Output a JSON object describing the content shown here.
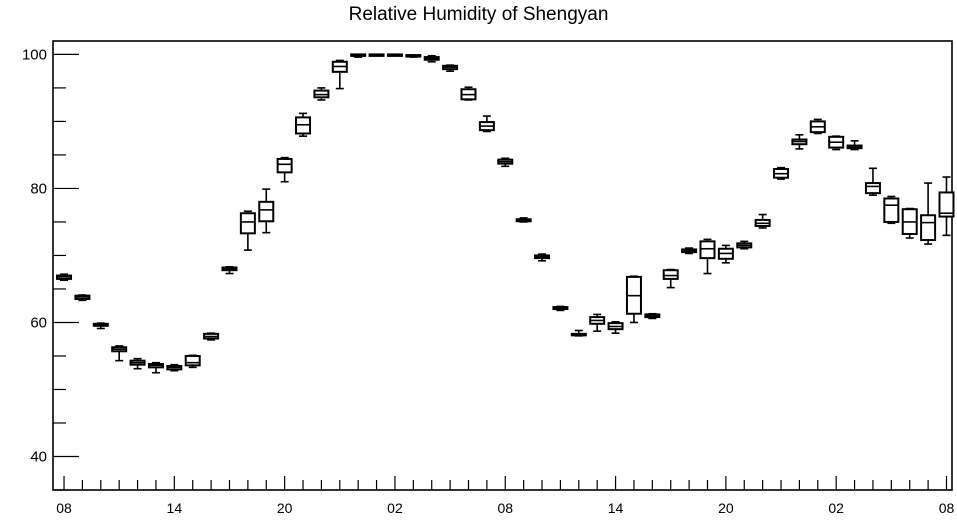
{
  "chart_data": {
    "type": "box",
    "title": "Relative Humidity of Shengyan",
    "xlabel": "",
    "ylabel": "",
    "ylim": [
      35,
      102
    ],
    "yticks": [
      40,
      60,
      80,
      100
    ],
    "x_tick_labels": [
      "08",
      "14",
      "20",
      "02",
      "08",
      "14",
      "20",
      "02",
      "08"
    ],
    "x_tick_label_positions": [
      0,
      6,
      12,
      18,
      24,
      30,
      36,
      42,
      48
    ],
    "x_range": [
      -0.6,
      48.3
    ],
    "grid": false,
    "box_color": "#000000",
    "boxes": [
      {
        "x": 0,
        "min": 66.3,
        "q1": 66.5,
        "median": 66.8,
        "q3": 67.0,
        "max": 67.2
      },
      {
        "x": 1,
        "min": 63.3,
        "q1": 63.5,
        "median": 63.8,
        "q3": 64.0,
        "max": 64.1
      },
      {
        "x": 2,
        "min": 59.1,
        "q1": 59.5,
        "median": 59.7,
        "q3": 59.8,
        "max": 59.9
      },
      {
        "x": 3,
        "min": 54.3,
        "q1": 55.7,
        "median": 56.0,
        "q3": 56.3,
        "max": 56.5
      },
      {
        "x": 4,
        "min": 53.1,
        "q1": 53.7,
        "median": 54.0,
        "q3": 54.3,
        "max": 54.6
      },
      {
        "x": 5,
        "min": 52.5,
        "q1": 53.3,
        "median": 53.6,
        "q3": 53.8,
        "max": 54.0
      },
      {
        "x": 6,
        "min": 52.8,
        "q1": 53.0,
        "median": 53.3,
        "q3": 53.5,
        "max": 53.7
      },
      {
        "x": 7,
        "min": 53.3,
        "q1": 53.6,
        "median": 54.0,
        "q3": 55.0,
        "max": 55.1
      },
      {
        "x": 8,
        "min": 57.4,
        "q1": 57.6,
        "median": 57.9,
        "q3": 58.3,
        "max": 58.4
      },
      {
        "x": 9,
        "min": 67.3,
        "q1": 67.8,
        "median": 68.0,
        "q3": 68.2,
        "max": 68.3
      },
      {
        "x": 10,
        "min": 70.8,
        "q1": 73.3,
        "median": 75.0,
        "q3": 76.3,
        "max": 76.6
      },
      {
        "x": 11,
        "min": 73.4,
        "q1": 75.1,
        "median": 76.8,
        "q3": 78.0,
        "max": 79.9
      },
      {
        "x": 12,
        "min": 81.0,
        "q1": 82.4,
        "median": 83.6,
        "q3": 84.4,
        "max": 84.6
      },
      {
        "x": 13,
        "min": 87.8,
        "q1": 88.2,
        "median": 89.5,
        "q3": 90.6,
        "max": 91.2
      },
      {
        "x": 14,
        "min": 93.2,
        "q1": 93.6,
        "median": 94.0,
        "q3": 94.6,
        "max": 95.0
      },
      {
        "x": 15,
        "min": 94.9,
        "q1": 97.4,
        "median": 98.2,
        "q3": 98.9,
        "max": 99.1
      },
      {
        "x": 16,
        "min": 99.6,
        "q1": 99.8,
        "median": 99.9,
        "q3": 100.0,
        "max": 100.0
      },
      {
        "x": 17,
        "min": 99.9,
        "q1": 99.9,
        "median": 100.0,
        "q3": 100.0,
        "max": 100.0
      },
      {
        "x": 18,
        "min": 99.9,
        "q1": 99.9,
        "median": 100.0,
        "q3": 100.0,
        "max": 100.0
      },
      {
        "x": 19,
        "min": 99.6,
        "q1": 99.7,
        "median": 99.8,
        "q3": 99.9,
        "max": 99.9
      },
      {
        "x": 20,
        "min": 98.9,
        "q1": 99.2,
        "median": 99.4,
        "q3": 99.6,
        "max": 99.8
      },
      {
        "x": 21,
        "min": 97.5,
        "q1": 97.8,
        "median": 98.1,
        "q3": 98.3,
        "max": 98.4
      },
      {
        "x": 22,
        "min": 93.2,
        "q1": 93.3,
        "median": 94.0,
        "q3": 94.8,
        "max": 95.1
      },
      {
        "x": 23,
        "min": 88.5,
        "q1": 88.7,
        "median": 89.3,
        "q3": 89.9,
        "max": 90.8
      },
      {
        "x": 24,
        "min": 83.3,
        "q1": 83.7,
        "median": 84.0,
        "q3": 84.3,
        "max": 84.5
      },
      {
        "x": 25,
        "min": 75.0,
        "q1": 75.1,
        "median": 75.3,
        "q3": 75.4,
        "max": 75.6
      },
      {
        "x": 26,
        "min": 69.2,
        "q1": 69.6,
        "median": 69.8,
        "q3": 70.0,
        "max": 70.2
      },
      {
        "x": 27,
        "min": 61.8,
        "q1": 62.0,
        "median": 62.2,
        "q3": 62.3,
        "max": 62.4
      },
      {
        "x": 28,
        "min": 58.0,
        "q1": 58.1,
        "median": 58.2,
        "q3": 58.3,
        "max": 58.8
      },
      {
        "x": 29,
        "min": 58.7,
        "q1": 59.8,
        "median": 60.3,
        "q3": 60.8,
        "max": 61.2
      },
      {
        "x": 30,
        "min": 58.4,
        "q1": 59.0,
        "median": 59.4,
        "q3": 59.9,
        "max": 60.1
      },
      {
        "x": 31,
        "min": 60.0,
        "q1": 61.3,
        "median": 64.0,
        "q3": 66.8,
        "max": 66.9
      },
      {
        "x": 32,
        "min": 60.6,
        "q1": 60.8,
        "median": 61.0,
        "q3": 61.2,
        "max": 61.3
      },
      {
        "x": 33,
        "min": 65.2,
        "q1": 66.5,
        "median": 67.0,
        "q3": 67.8,
        "max": 67.9
      },
      {
        "x": 34,
        "min": 70.3,
        "q1": 70.5,
        "median": 70.7,
        "q3": 70.9,
        "max": 71.1
      },
      {
        "x": 35,
        "min": 67.3,
        "q1": 69.6,
        "median": 71.0,
        "q3": 72.1,
        "max": 72.4
      },
      {
        "x": 36,
        "min": 68.9,
        "q1": 69.5,
        "median": 70.3,
        "q3": 71.0,
        "max": 71.5
      },
      {
        "x": 37,
        "min": 71.0,
        "q1": 71.2,
        "median": 71.5,
        "q3": 71.8,
        "max": 72.1
      },
      {
        "x": 38,
        "min": 74.1,
        "q1": 74.4,
        "median": 74.8,
        "q3": 75.3,
        "max": 76.1
      },
      {
        "x": 39,
        "min": 81.4,
        "q1": 81.6,
        "median": 82.2,
        "q3": 82.9,
        "max": 83.1
      },
      {
        "x": 40,
        "min": 85.9,
        "q1": 86.6,
        "median": 87.0,
        "q3": 87.3,
        "max": 88.0
      },
      {
        "x": 41,
        "min": 88.2,
        "q1": 88.4,
        "median": 89.2,
        "q3": 90.0,
        "max": 90.3
      },
      {
        "x": 42,
        "min": 85.8,
        "q1": 86.1,
        "median": 86.9,
        "q3": 87.7,
        "max": 87.8
      },
      {
        "x": 43,
        "min": 85.8,
        "q1": 86.0,
        "median": 86.2,
        "q3": 86.4,
        "max": 87.1
      },
      {
        "x": 44,
        "min": 79.0,
        "q1": 79.3,
        "median": 80.3,
        "q3": 80.8,
        "max": 83.0
      },
      {
        "x": 45,
        "min": 74.8,
        "q1": 75.0,
        "median": 77.5,
        "q3": 78.5,
        "max": 78.8
      },
      {
        "x": 46,
        "min": 72.6,
        "q1": 73.2,
        "median": 75.0,
        "q3": 76.9,
        "max": 77.0
      },
      {
        "x": 47,
        "min": 71.7,
        "q1": 72.3,
        "median": 74.9,
        "q3": 76.0,
        "max": 80.8
      },
      {
        "x": 48,
        "min": 73.0,
        "q1": 75.8,
        "median": 76.3,
        "q3": 79.4,
        "max": 81.7
      }
    ]
  }
}
